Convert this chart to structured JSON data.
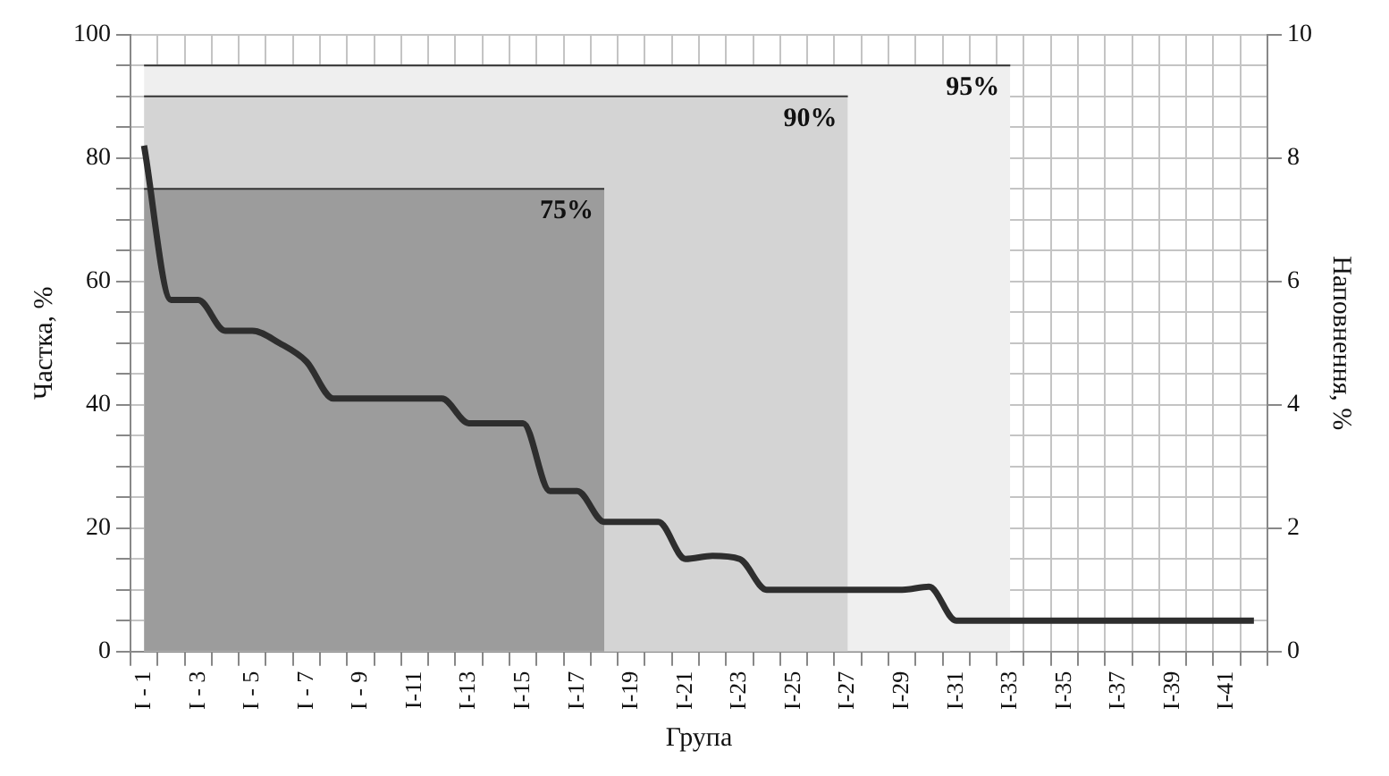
{
  "chart_data": {
    "type": "line",
    "xlabel": "Група",
    "ylabel": "Частка, %",
    "y2label": "Наповнення, %",
    "categories": [
      "I - 1",
      null,
      "I - 3",
      null,
      "I - 5",
      null,
      "I - 7",
      null,
      "I - 9",
      null,
      "I-11",
      null,
      "I-13",
      null,
      "I-15",
      null,
      "I-17",
      null,
      "I-19",
      null,
      "I-21",
      null,
      "I-23",
      null,
      "I-25",
      null,
      "I-27",
      null,
      "I-29",
      null,
      "I-31",
      null,
      "I-33",
      null,
      "I-35",
      null,
      "I-37",
      null,
      "I-39",
      null,
      "I-41",
      null
    ],
    "series": [
      {
        "type": "area",
        "name": "95%",
        "color": "#efefef",
        "values": [
          95,
          95,
          95,
          95,
          95,
          95,
          95,
          95,
          95,
          95,
          95,
          95,
          95,
          95,
          95,
          95,
          95,
          95,
          95,
          95,
          95,
          95,
          95,
          95,
          95,
          95,
          95,
          95,
          95,
          95,
          95,
          95,
          95,
          null,
          null,
          null,
          null,
          null,
          null,
          null,
          null,
          null
        ]
      },
      {
        "type": "area",
        "name": "90%",
        "color": "#d4d4d4",
        "values": [
          90,
          90,
          90,
          90,
          90,
          90,
          90,
          90,
          90,
          90,
          90,
          90,
          90,
          90,
          90,
          90,
          90,
          90,
          90,
          90,
          90,
          90,
          90,
          90,
          90,
          90,
          90,
          null,
          null,
          null,
          null,
          null,
          null,
          null,
          null,
          null,
          null,
          null,
          null,
          null,
          null,
          null
        ]
      },
      {
        "type": "area",
        "name": "75%",
        "color": "#9c9c9c",
        "values": [
          75,
          75,
          75,
          75,
          75,
          75,
          75,
          75,
          75,
          75,
          75,
          75,
          75,
          75,
          75,
          75,
          75,
          75,
          null,
          null,
          null,
          null,
          null,
          null,
          null,
          null,
          null,
          null,
          null,
          null,
          null,
          null,
          null,
          null,
          null,
          null,
          null,
          null,
          null,
          null,
          null,
          null
        ]
      },
      {
        "color": "#2e2e2e",
        "values": [
          82,
          57,
          57,
          52,
          52,
          50,
          47,
          41,
          41,
          41,
          41,
          41,
          37,
          37,
          37,
          26,
          26,
          21,
          21,
          21,
          15,
          15.5,
          15,
          10,
          10,
          10,
          10,
          10,
          10,
          10.5,
          5,
          5,
          5,
          5,
          5,
          5,
          5,
          5,
          5,
          5,
          5,
          5
        ]
      }
    ],
    "ylim": [
      0,
      100
    ],
    "yticks": [
      0,
      {
        "value": 5,
        "label": null
      },
      {
        "value": 10,
        "label": null
      },
      {
        "value": 15,
        "label": null
      },
      20,
      {
        "value": 25,
        "label": null
      },
      {
        "value": 30,
        "label": null
      },
      {
        "value": 35,
        "label": null
      },
      40,
      {
        "value": 45,
        "label": null
      },
      {
        "value": 50,
        "label": null
      },
      {
        "value": 55,
        "label": null
      },
      60,
      {
        "value": 65,
        "label": null
      },
      {
        "value": 70,
        "label": null
      },
      {
        "value": 75,
        "label": null
      },
      80,
      {
        "value": 85,
        "label": null
      },
      {
        "value": 90,
        "label": null
      },
      {
        "value": 95,
        "label": null
      },
      100
    ],
    "y2lim": [
      0,
      10
    ],
    "y2ticks": [
      0,
      2,
      4,
      6,
      8,
      10
    ],
    "grid": true
  }
}
